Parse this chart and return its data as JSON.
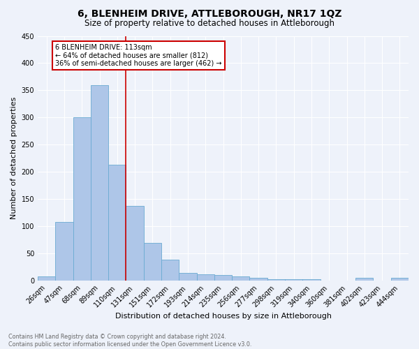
{
  "title": "6, BLENHEIM DRIVE, ATTLEBOROUGH, NR17 1QZ",
  "subtitle": "Size of property relative to detached houses in Attleborough",
  "xlabel": "Distribution of detached houses by size in Attleborough",
  "ylabel": "Number of detached properties",
  "categories": [
    "26sqm",
    "47sqm",
    "68sqm",
    "89sqm",
    "110sqm",
    "131sqm",
    "151sqm",
    "172sqm",
    "193sqm",
    "214sqm",
    "235sqm",
    "256sqm",
    "277sqm",
    "298sqm",
    "319sqm",
    "340sqm",
    "360sqm",
    "381sqm",
    "402sqm",
    "423sqm",
    "444sqm"
  ],
  "values": [
    8,
    108,
    301,
    360,
    213,
    137,
    70,
    38,
    14,
    12,
    10,
    8,
    5,
    3,
    3,
    3,
    0,
    0,
    5,
    0,
    5
  ],
  "bar_color": "#aec6e8",
  "bar_edge_color": "#6aabd2",
  "vline_color": "#cc0000",
  "annotation_text": "6 BLENHEIM DRIVE: 113sqm\n← 64% of detached houses are smaller (812)\n36% of semi-detached houses are larger (462) →",
  "annotation_box_color": "white",
  "annotation_box_edge_color": "#cc0000",
  "ylim": [
    0,
    450
  ],
  "yticks": [
    0,
    50,
    100,
    150,
    200,
    250,
    300,
    350,
    400,
    450
  ],
  "footer_line1": "Contains HM Land Registry data © Crown copyright and database right 2024.",
  "footer_line2": "Contains public sector information licensed under the Open Government Licence v3.0.",
  "bg_color": "#eef2fa",
  "grid_color": "#ffffff",
  "title_fontsize": 10,
  "subtitle_fontsize": 8.5,
  "axis_label_fontsize": 8,
  "tick_fontsize": 7,
  "footer_fontsize": 5.8,
  "annotation_fontsize": 7
}
